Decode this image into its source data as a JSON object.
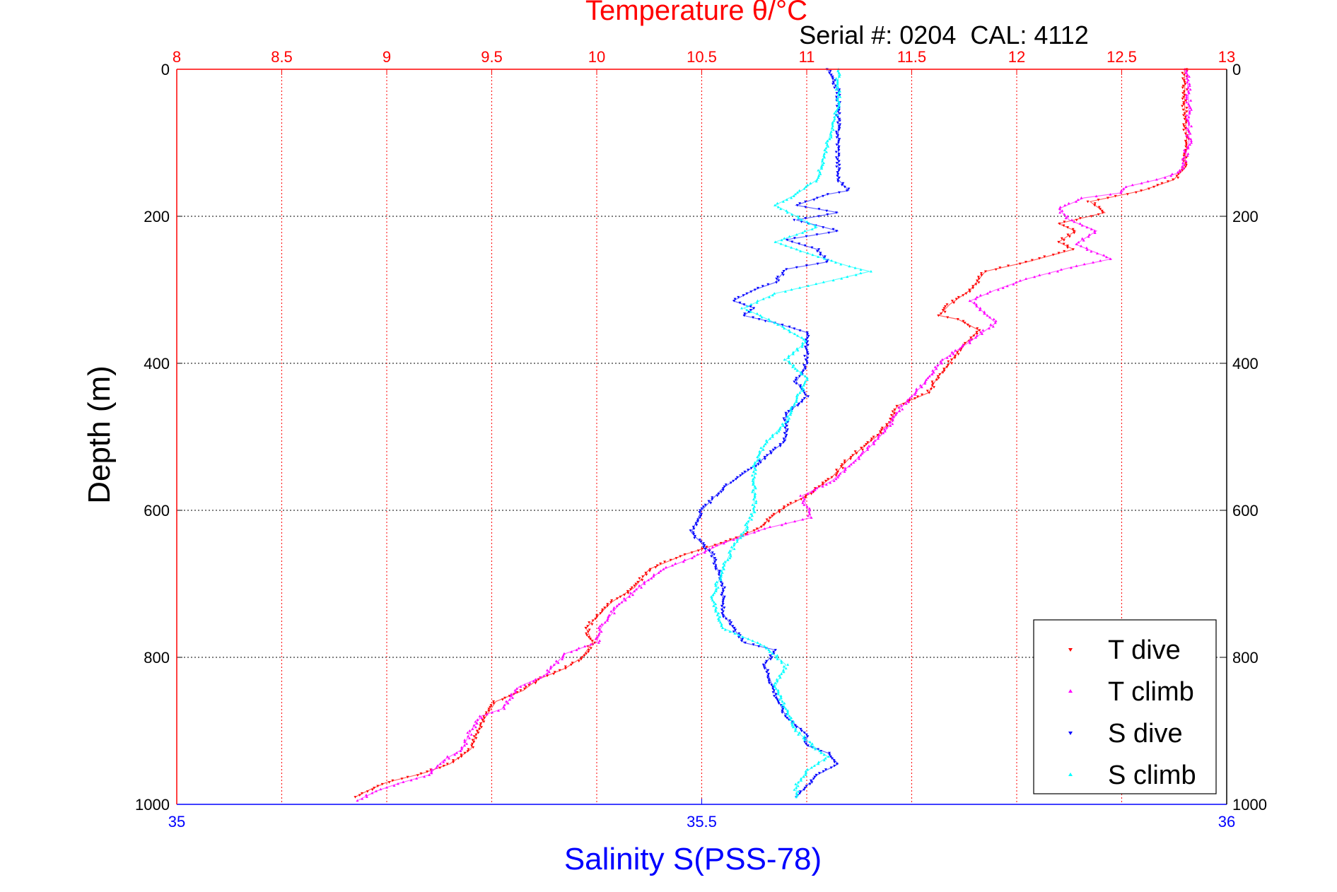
{
  "chart_data": {
    "type": "scatter",
    "title": "Temperature θ/°C",
    "subtitle": "Serial #: 0204  CAL: 4112",
    "ylabel": "Depth (m)",
    "xlabel_bottom": "Salinity S(PSS-78)",
    "y_reversed": true,
    "ylim": [
      0,
      1000
    ],
    "y_ticks": [
      "0",
      "200",
      "400",
      "600",
      "800",
      "1000"
    ],
    "x_top": {
      "label": "Temperature θ/°C",
      "range": [
        8,
        13
      ],
      "ticks": [
        "8",
        "8.5",
        "9",
        "9.5",
        "10",
        "10.5",
        "11",
        "11.5",
        "12",
        "12.5",
        "13"
      ],
      "grid": true,
      "color": "#ff0000"
    },
    "x_bottom": {
      "label": "Salinity S(PSS-78)",
      "range": [
        35,
        36
      ],
      "ticks": [
        "35",
        "35.5",
        "36"
      ],
      "color": "#0000ff"
    },
    "grid": true,
    "legend_position": "bottom-right",
    "series": [
      {
        "name": "T dive",
        "axis": "top",
        "color": "#ff0000",
        "points": [
          [
            12.8,
            0
          ],
          [
            12.8,
            50
          ],
          [
            12.81,
            100
          ],
          [
            12.8,
            130
          ],
          [
            12.75,
            150
          ],
          [
            12.6,
            165
          ],
          [
            12.35,
            180
          ],
          [
            12.42,
            195
          ],
          [
            12.2,
            210
          ],
          [
            12.28,
            220
          ],
          [
            12.2,
            235
          ],
          [
            12.27,
            245
          ],
          [
            12.05,
            262
          ],
          [
            11.85,
            275
          ],
          [
            11.78,
            300
          ],
          [
            11.68,
            320
          ],
          [
            11.63,
            335
          ],
          [
            11.72,
            340
          ],
          [
            11.82,
            355
          ],
          [
            11.73,
            380
          ],
          [
            11.68,
            400
          ],
          [
            11.62,
            420
          ],
          [
            11.58,
            440
          ],
          [
            11.43,
            458
          ],
          [
            11.4,
            478
          ],
          [
            11.33,
            500
          ],
          [
            11.2,
            530
          ],
          [
            11.12,
            555
          ],
          [
            11.0,
            580
          ],
          [
            10.87,
            600
          ],
          [
            10.77,
            625
          ],
          [
            10.62,
            642
          ],
          [
            10.42,
            660
          ],
          [
            10.25,
            680
          ],
          [
            10.18,
            705
          ],
          [
            10.07,
            725
          ],
          [
            10.0,
            745
          ],
          [
            9.95,
            760
          ],
          [
            9.98,
            780
          ],
          [
            9.93,
            800
          ],
          [
            9.85,
            815
          ],
          [
            9.72,
            830
          ],
          [
            9.65,
            845
          ],
          [
            9.52,
            860
          ],
          [
            9.45,
            890
          ],
          [
            9.42,
            910
          ],
          [
            9.4,
            925
          ],
          [
            9.35,
            935
          ],
          [
            9.3,
            945
          ],
          [
            9.17,
            958
          ],
          [
            9.0,
            970
          ],
          [
            8.92,
            980
          ],
          [
            8.85,
            990
          ]
        ]
      },
      {
        "name": "T climb",
        "axis": "top",
        "color": "#ff00ff",
        "points": [
          [
            12.81,
            0
          ],
          [
            12.82,
            50
          ],
          [
            12.82,
            100
          ],
          [
            12.78,
            140
          ],
          [
            12.67,
            150
          ],
          [
            12.52,
            160
          ],
          [
            12.5,
            168
          ],
          [
            12.32,
            175
          ],
          [
            12.2,
            190
          ],
          [
            12.25,
            205
          ],
          [
            12.38,
            220
          ],
          [
            12.28,
            238
          ],
          [
            12.45,
            258
          ],
          [
            12.25,
            270
          ],
          [
            12.05,
            285
          ],
          [
            11.9,
            300
          ],
          [
            11.78,
            315
          ],
          [
            11.9,
            345
          ],
          [
            11.78,
            370
          ],
          [
            11.65,
            395
          ],
          [
            11.55,
            430
          ],
          [
            11.45,
            460
          ],
          [
            11.38,
            490
          ],
          [
            11.28,
            520
          ],
          [
            11.12,
            560
          ],
          [
            10.98,
            580
          ],
          [
            11.02,
            610
          ],
          [
            10.8,
            625
          ],
          [
            10.6,
            645
          ],
          [
            10.45,
            665
          ],
          [
            10.32,
            680
          ],
          [
            10.22,
            700
          ],
          [
            10.1,
            730
          ],
          [
            10.02,
            760
          ],
          [
            10.0,
            780
          ],
          [
            9.85,
            795
          ],
          [
            9.75,
            825
          ],
          [
            9.63,
            840
          ],
          [
            9.55,
            870
          ],
          [
            9.45,
            880
          ],
          [
            9.4,
            900
          ],
          [
            9.36,
            925
          ],
          [
            9.27,
            940
          ],
          [
            9.2,
            960
          ],
          [
            9.05,
            972
          ],
          [
            8.95,
            982
          ],
          [
            8.86,
            995
          ]
        ]
      },
      {
        "name": "S dive",
        "axis": "bottom",
        "color": "#0000ff",
        "points": [
          [
            35.62,
            0
          ],
          [
            35.63,
            30
          ],
          [
            35.63,
            100
          ],
          [
            35.63,
            150
          ],
          [
            35.64,
            165
          ],
          [
            35.62,
            170
          ],
          [
            35.59,
            185
          ],
          [
            35.63,
            195
          ],
          [
            35.59,
            205
          ],
          [
            35.63,
            220
          ],
          [
            35.58,
            232
          ],
          [
            35.61,
            245
          ],
          [
            35.62,
            262
          ],
          [
            35.58,
            272
          ],
          [
            35.57,
            290
          ],
          [
            35.55,
            300
          ],
          [
            35.53,
            315
          ],
          [
            35.55,
            325
          ],
          [
            35.54,
            335
          ],
          [
            35.57,
            345
          ],
          [
            35.6,
            358
          ],
          [
            35.6,
            380
          ],
          [
            35.6,
            400
          ],
          [
            35.59,
            425
          ],
          [
            35.6,
            445
          ],
          [
            35.58,
            470
          ],
          [
            35.58,
            505
          ],
          [
            35.55,
            540
          ],
          [
            35.52,
            570
          ],
          [
            35.5,
            600
          ],
          [
            35.49,
            630
          ],
          [
            35.51,
            660
          ],
          [
            35.52,
            700
          ],
          [
            35.52,
            740
          ],
          [
            35.54,
            780
          ],
          [
            35.57,
            790
          ],
          [
            35.56,
            810
          ],
          [
            35.57,
            850
          ],
          [
            35.58,
            880
          ],
          [
            35.6,
            905
          ],
          [
            35.6,
            920
          ],
          [
            35.62,
            930
          ],
          [
            35.63,
            945
          ],
          [
            35.61,
            960
          ],
          [
            35.6,
            975
          ],
          [
            35.59,
            990
          ]
        ]
      },
      {
        "name": "S climb",
        "axis": "bottom",
        "color": "#00ffff",
        "points": [
          [
            35.63,
            0
          ],
          [
            35.63,
            50
          ],
          [
            35.62,
            100
          ],
          [
            35.61,
            150
          ],
          [
            35.59,
            170
          ],
          [
            35.57,
            185
          ],
          [
            35.59,
            200
          ],
          [
            35.61,
            215
          ],
          [
            35.57,
            235
          ],
          [
            35.6,
            250
          ],
          [
            35.64,
            268
          ],
          [
            35.66,
            275
          ],
          [
            35.61,
            292
          ],
          [
            35.57,
            305
          ],
          [
            35.54,
            325
          ],
          [
            35.57,
            345
          ],
          [
            35.6,
            370
          ],
          [
            35.58,
            395
          ],
          [
            35.6,
            420
          ],
          [
            35.59,
            450
          ],
          [
            35.58,
            480
          ],
          [
            35.56,
            510
          ],
          [
            35.55,
            540
          ],
          [
            35.55,
            570
          ],
          [
            35.55,
            600
          ],
          [
            35.54,
            630
          ],
          [
            35.53,
            650
          ],
          [
            35.52,
            680
          ],
          [
            35.51,
            720
          ],
          [
            35.52,
            760
          ],
          [
            35.56,
            785
          ],
          [
            35.58,
            810
          ],
          [
            35.57,
            840
          ],
          [
            35.58,
            870
          ],
          [
            35.59,
            900
          ],
          [
            35.61,
            925
          ],
          [
            35.62,
            935
          ],
          [
            35.6,
            955
          ],
          [
            35.59,
            975
          ],
          [
            35.59,
            990
          ]
        ]
      }
    ]
  }
}
